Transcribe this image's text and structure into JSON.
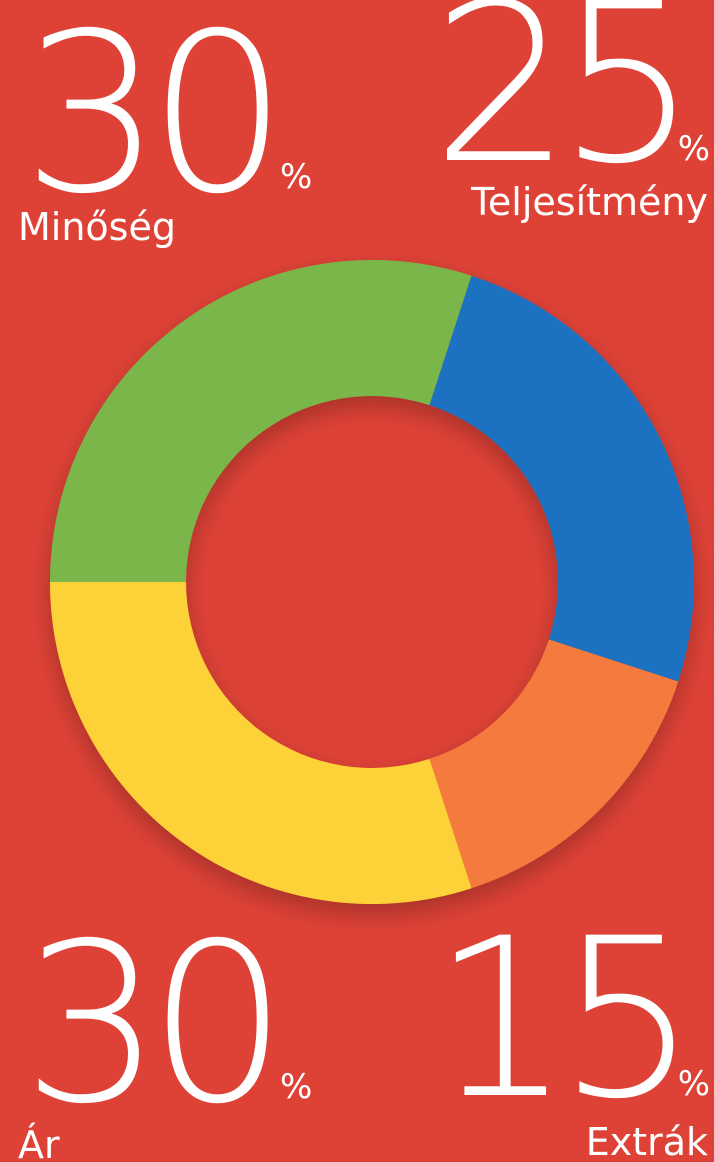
{
  "chart_data": {
    "type": "donut",
    "categories": [
      "Minőség",
      "Teljesítmény",
      "Extrák",
      "Ár"
    ],
    "values": [
      30,
      25,
      15,
      30
    ],
    "value_unit": "%",
    "colors": [
      "#7ab648",
      "#1a72c0",
      "#f47a3e",
      "#fdd238"
    ],
    "background": "#de4237"
  }
}
